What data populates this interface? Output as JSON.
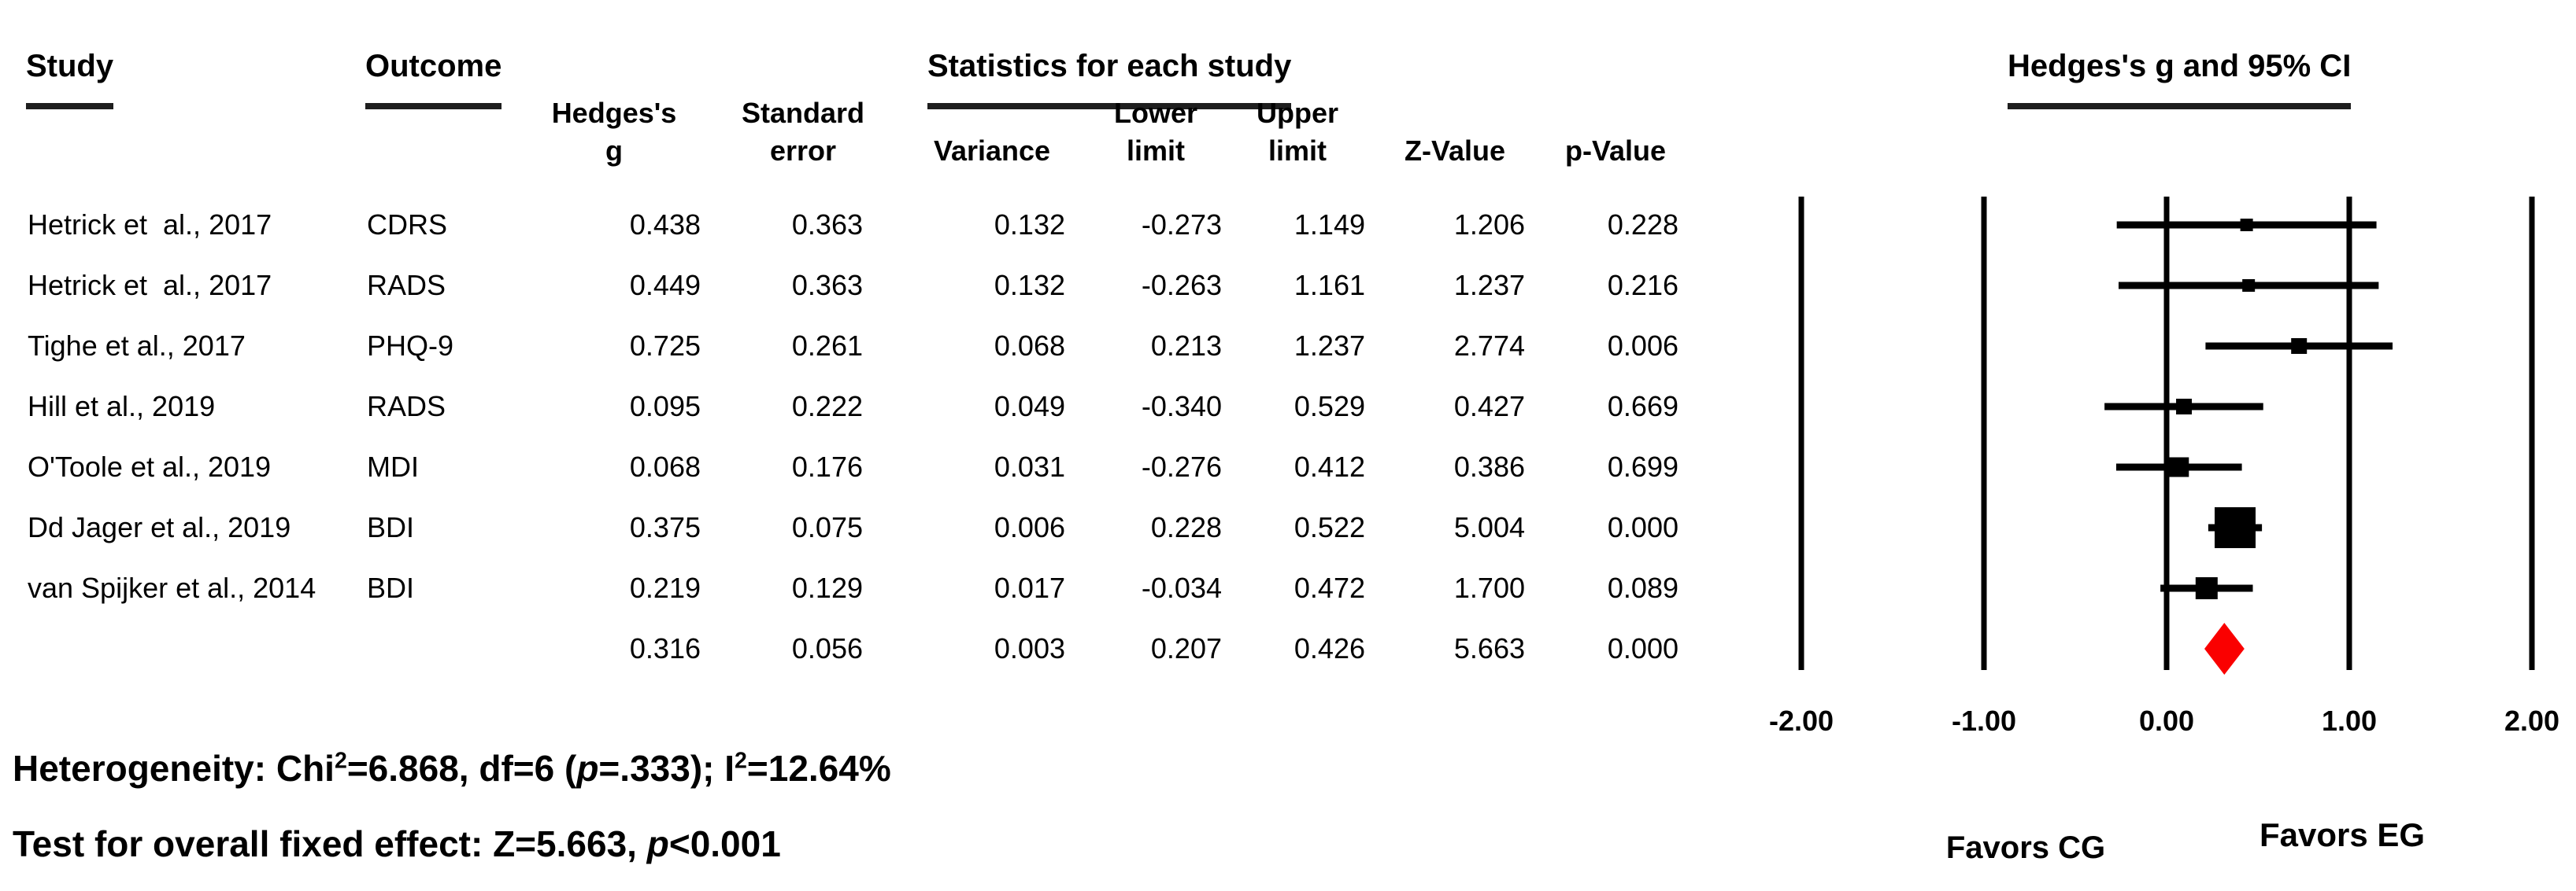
{
  "table": {
    "group_headers": {
      "study": "Study",
      "outcome": "Outcome",
      "stats": "Statistics for each study",
      "plot": "Hedges's g and 95% CI"
    },
    "columns": [
      {
        "line1": "Hedges's",
        "line2": "g"
      },
      {
        "line1": "Standard",
        "line2": "error"
      },
      {
        "line1": "",
        "line2": "Variance"
      },
      {
        "line1": "Lower",
        "line2": "limit"
      },
      {
        "line1": "Upper",
        "line2": "limit"
      },
      {
        "line1": "",
        "line2": "Z-Value"
      },
      {
        "line1": "",
        "line2": "p-Value"
      }
    ],
    "rows": [
      {
        "study": "Hetrick et  al., 2017",
        "outcome": "CDRS",
        "g": "0.438",
        "se": "0.363",
        "var": "0.132",
        "lower": "-0.273",
        "upper": "1.149",
        "z": "1.206",
        "p": "0.228"
      },
      {
        "study": "Hetrick et  al., 2017",
        "outcome": "RADS",
        "g": "0.449",
        "se": "0.363",
        "var": "0.132",
        "lower": "-0.263",
        "upper": "1.161",
        "z": "1.237",
        "p": "0.216"
      },
      {
        "study": "Tighe et al., 2017",
        "outcome": "PHQ-9",
        "g": "0.725",
        "se": "0.261",
        "var": "0.068",
        "lower": "0.213",
        "upper": "1.237",
        "z": "2.774",
        "p": "0.006"
      },
      {
        "study": "Hill et al., 2019",
        "outcome": "RADS",
        "g": "0.095",
        "se": "0.222",
        "var": "0.049",
        "lower": "-0.340",
        "upper": "0.529",
        "z": "0.427",
        "p": "0.669"
      },
      {
        "study": "O'Toole et al., 2019",
        "outcome": "MDI",
        "g": "0.068",
        "se": "0.176",
        "var": "0.031",
        "lower": "-0.276",
        "upper": "0.412",
        "z": "0.386",
        "p": "0.699"
      },
      {
        "study": "Dd Jager et al., 2019",
        "outcome": "BDI",
        "g": "0.375",
        "se": "0.075",
        "var": "0.006",
        "lower": "0.228",
        "upper": "0.522",
        "z": "5.004",
        "p": "0.000"
      },
      {
        "study": "van Spijker et al., 2014",
        "outcome": "BDI",
        "g": "0.219",
        "se": "0.129",
        "var": "0.017",
        "lower": "-0.034",
        "upper": "0.472",
        "z": "1.700",
        "p": "0.089"
      }
    ],
    "summary_row": {
      "study": "",
      "outcome": "",
      "g": "0.316",
      "se": "0.056",
      "var": "0.003",
      "lower": "0.207",
      "upper": "0.426",
      "z": "5.663",
      "p": "0.000"
    }
  },
  "chart_data": {
    "type": "forest",
    "title": "Hedges's g and 95% CI",
    "xlim": [
      -2,
      2
    ],
    "x_ticks": [
      -2,
      -1,
      0,
      1,
      2
    ],
    "x_tick_labels": [
      "-2.00",
      "-1.00",
      "0.00",
      "1.00",
      "2.00"
    ],
    "grid": "vertical-reference-lines",
    "studies": [
      {
        "label": "Hetrick et  al., 2017 (CDRS)",
        "g": 0.438,
        "lower": -0.273,
        "upper": 1.149,
        "marker_px": 16
      },
      {
        "label": "Hetrick et  al., 2017 (RADS)",
        "g": 0.449,
        "lower": -0.263,
        "upper": 1.161,
        "marker_px": 16
      },
      {
        "label": "Tighe et al., 2017 (PHQ-9)",
        "g": 0.725,
        "lower": 0.213,
        "upper": 1.237,
        "marker_px": 20
      },
      {
        "label": "Hill et al., 2019 (RADS)",
        "g": 0.095,
        "lower": -0.34,
        "upper": 0.529,
        "marker_px": 20
      },
      {
        "label": "O'Toole et al., 2019 (MDI)",
        "g": 0.068,
        "lower": -0.276,
        "upper": 0.412,
        "marker_px": 25
      },
      {
        "label": "Dd Jager et al., 2019 (BDI)",
        "g": 0.375,
        "lower": 0.228,
        "upper": 0.522,
        "marker_px": 52
      },
      {
        "label": "van Spijker et al., 2014 (BDI)",
        "g": 0.219,
        "lower": -0.034,
        "upper": 0.472,
        "marker_px": 28
      }
    ],
    "summary": {
      "g": 0.316,
      "lower": 0.207,
      "upper": 0.426,
      "shape": "diamond"
    },
    "favors_left": "Favors CG",
    "favors_right": "Favors EG",
    "heterogeneity": "Chi2=6.868, df=6 (p=.333); I2=12.64%",
    "overall_test": "Z=5.663, p<0.001",
    "diamond_color": "#fa0000",
    "line_color": "#000000"
  },
  "footer": {
    "line1": [
      {
        "t": "Heterogeneity: Chi"
      },
      {
        "t": "2",
        "sup": true
      },
      {
        "t": "=6.868, df=6 ("
      },
      {
        "t": "p",
        "i": true
      },
      {
        "t": "=.333); I"
      },
      {
        "t": "2",
        "sup": true
      },
      {
        "t": "=12.64%"
      }
    ],
    "line2": [
      {
        "t": "Test for overall fixed effect: Z=5.663, "
      },
      {
        "t": "p",
        "i": true
      },
      {
        "t": "<0.001"
      }
    ]
  }
}
